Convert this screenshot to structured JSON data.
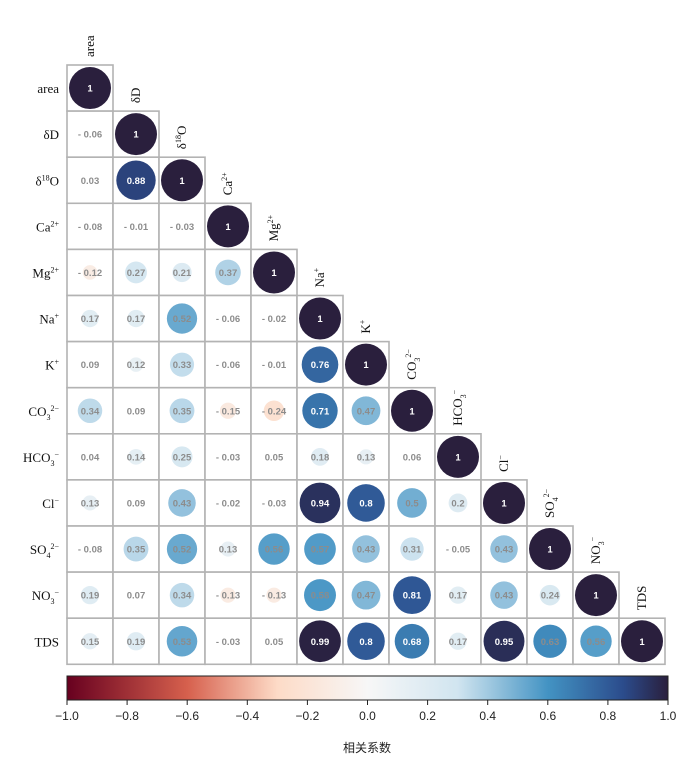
{
  "chart_data": {
    "type": "heatmap",
    "variables": [
      {
        "base": "area",
        "sup": ""
      },
      {
        "base": "δD",
        "sup": ""
      },
      {
        "base": "δ",
        "sup": "18",
        "after": "O",
        "presup": true
      },
      {
        "base": "Ca",
        "sup": "2+"
      },
      {
        "base": "Mg",
        "sup": "2+"
      },
      {
        "base": "Na",
        "sup": "+"
      },
      {
        "base": "K",
        "sup": "+"
      },
      {
        "base": "CO",
        "sub": "3",
        "sup": "2−"
      },
      {
        "base": "HCO",
        "sub": "3",
        "sup": "−"
      },
      {
        "base": "Cl",
        "sup": "−"
      },
      {
        "base": "SO",
        "sub": "4",
        "sup": "2−"
      },
      {
        "base": "NO",
        "sub": "3",
        "sup": "−"
      },
      {
        "base": "TDS",
        "sup": ""
      }
    ],
    "matrix": [
      [
        1
      ],
      [
        -0.06,
        1
      ],
      [
        0.03,
        0.88,
        1
      ],
      [
        -0.08,
        -0.01,
        -0.03,
        1
      ],
      [
        -0.12,
        0.27,
        0.21,
        0.37,
        1
      ],
      [
        0.17,
        0.17,
        0.52,
        -0.06,
        -0.02,
        1
      ],
      [
        0.09,
        0.12,
        0.33,
        -0.06,
        -0.01,
        0.76,
        1
      ],
      [
        0.34,
        0.09,
        0.35,
        -0.15,
        -0.24,
        0.71,
        0.47,
        1
      ],
      [
        0.04,
        0.14,
        0.25,
        -0.03,
        0.05,
        0.18,
        0.13,
        0.06,
        1
      ],
      [
        0.13,
        0.09,
        0.43,
        -0.02,
        -0.03,
        0.94,
        0.8,
        0.5,
        0.2,
        1
      ],
      [
        -0.08,
        0.35,
        0.52,
        0.13,
        0.56,
        0.57,
        0.43,
        0.31,
        -0.05,
        0.43,
        1
      ],
      [
        0.19,
        0.07,
        0.34,
        -0.13,
        -0.13,
        0.58,
        0.47,
        0.81,
        0.17,
        0.43,
        0.24,
        1
      ],
      [
        0.15,
        0.19,
        0.53,
        -0.03,
        0.05,
        0.99,
        0.8,
        0.68,
        0.17,
        0.95,
        0.63,
        0.56,
        1
      ]
    ],
    "colorbar": {
      "range": [
        -1.0,
        1.0
      ],
      "ticks": [
        "−1.0",
        "−0.8",
        "−0.6",
        "−0.4",
        "−0.2",
        "0.0",
        "0.2",
        "0.4",
        "0.6",
        "0.8",
        "1.0"
      ],
      "label": "相关系数"
    },
    "colors": {
      "neg_strong": "#67001f",
      "neg_mid": "#d6604d",
      "neg_light": "#fddbc7",
      "zero": "#f7f7f7",
      "pos_light": "#d1e5f0",
      "pos_mid": "#4393c3",
      "pos_dark": "#2b4c8c",
      "pos_strong": "#2a1f3d"
    }
  }
}
